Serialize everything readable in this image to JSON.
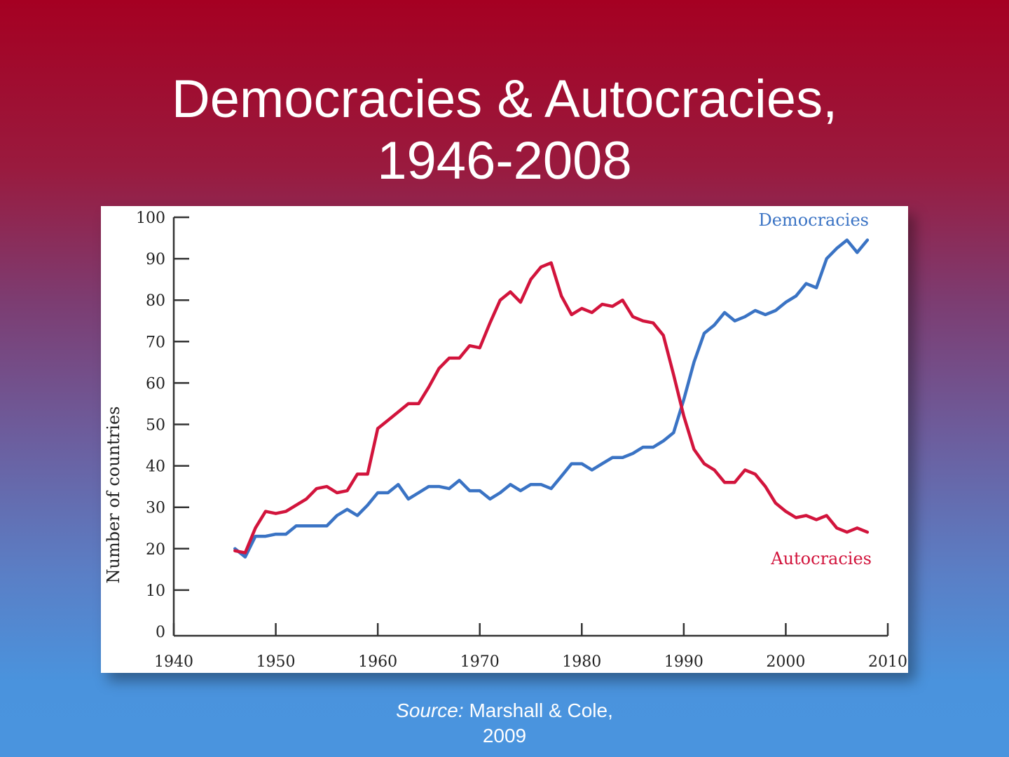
{
  "slide": {
    "title_line1": "Democracies & Autocracies,",
    "title_line2": "1946-2008"
  },
  "source": {
    "label": "Source:",
    "text_line1": "Marshall & Cole,",
    "text_line2": "2009"
  },
  "colors": {
    "democracies": "#3a73c4",
    "autocracies": "#d2143c",
    "axis": "#333333"
  },
  "chart_data": {
    "type": "line",
    "ylabel": "Number of countries",
    "xlim": [
      1940,
      2010
    ],
    "ylim": [
      0,
      100
    ],
    "xticks": [
      1940,
      1950,
      1960,
      1970,
      1980,
      1990,
      2000,
      2010
    ],
    "yticks": [
      0,
      10,
      20,
      30,
      40,
      50,
      60,
      70,
      80,
      90,
      100
    ],
    "x": [
      1946,
      1947,
      1948,
      1949,
      1950,
      1951,
      1952,
      1953,
      1954,
      1955,
      1956,
      1957,
      1958,
      1959,
      1960,
      1961,
      1962,
      1963,
      1964,
      1965,
      1966,
      1967,
      1968,
      1969,
      1970,
      1971,
      1972,
      1973,
      1974,
      1975,
      1976,
      1977,
      1978,
      1979,
      1980,
      1981,
      1982,
      1983,
      1984,
      1985,
      1986,
      1987,
      1988,
      1989,
      1990,
      1991,
      1992,
      1993,
      1994,
      1995,
      1996,
      1997,
      1998,
      1999,
      2000,
      2001,
      2002,
      2003,
      2004,
      2005,
      2006,
      2007,
      2008
    ],
    "series": [
      {
        "name": "Democracies",
        "values": [
          20,
          18,
          23,
          23,
          23.5,
          23.5,
          25.5,
          25.5,
          25.5,
          25.5,
          28,
          29.5,
          28,
          30.5,
          33.5,
          33.5,
          35.5,
          32,
          33.5,
          35,
          35,
          34.5,
          36.5,
          34,
          34,
          32,
          33.5,
          35.5,
          34,
          35.5,
          35.5,
          34.5,
          37.5,
          40.5,
          40.5,
          39,
          40.5,
          42,
          42,
          43,
          44.5,
          44.5,
          46,
          48,
          56,
          65,
          72,
          74,
          77,
          75,
          76,
          77.5,
          76.5,
          77.5,
          79.5,
          81,
          84,
          83,
          90,
          92.5,
          94.5,
          91.5,
          94.5
        ]
      },
      {
        "name": "Autocracies",
        "values": [
          19.5,
          19,
          25,
          29,
          28.5,
          29,
          30.5,
          32,
          34.5,
          35,
          33.5,
          34,
          38,
          38,
          49,
          51,
          53,
          55,
          55,
          59,
          63.5,
          66,
          66,
          69,
          68.5,
          74.5,
          80,
          82,
          79.5,
          85,
          88,
          89,
          81,
          76.5,
          78,
          77,
          79,
          78.5,
          80,
          76,
          75,
          74.5,
          71.5,
          62,
          52,
          44,
          40.5,
          39,
          36,
          36,
          39,
          38,
          35,
          31,
          29,
          27.5,
          28,
          27,
          28,
          25,
          24,
          25,
          24
        ]
      }
    ]
  }
}
